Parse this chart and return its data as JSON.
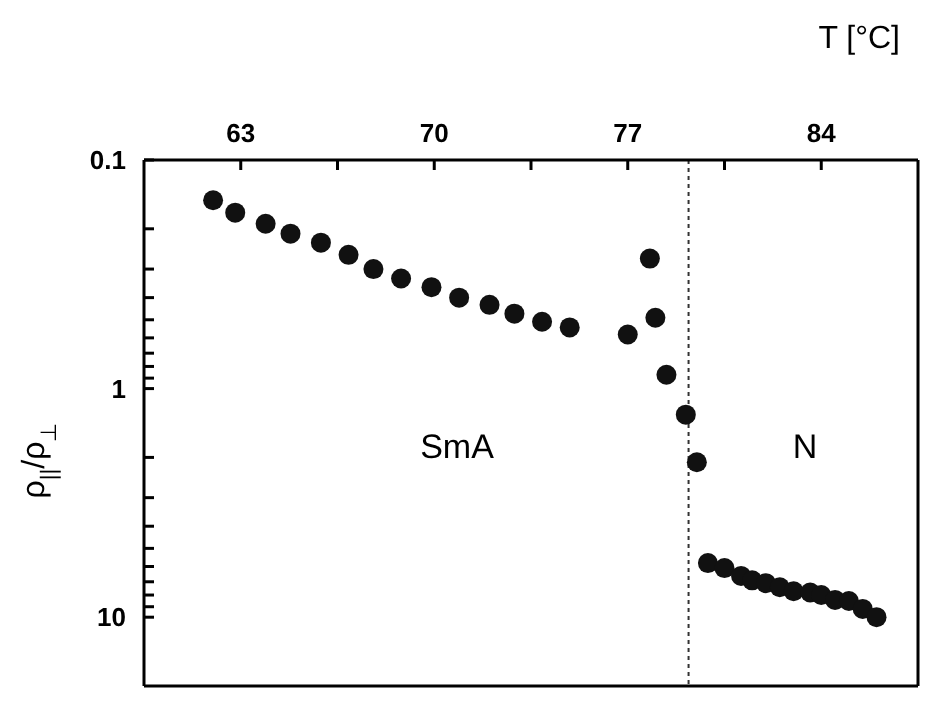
{
  "chart_data": {
    "type": "scatter",
    "xlabel": "T [°C]",
    "ylabel": "ρ$_{||}$/ρ$_{⊥}$",
    "xlim": [
      59.5,
      87.5
    ],
    "xticks": [
      63,
      {
        "value": 66.5,
        "label": null
      },
      70,
      {
        "value": 73.5,
        "label": null
      },
      77,
      {
        "value": 80.5,
        "label": null
      },
      84
    ],
    "ylim": [
      20,
      0.1
    ],
    "log": true,
    "yticks": [
      0.1,
      {
        "value": 0.2,
        "label": null
      },
      {
        "value": 0.3,
        "label": null
      },
      {
        "value": 0.4,
        "label": null
      },
      {
        "value": 0.5,
        "label": null
      },
      {
        "value": 0.6,
        "label": null
      },
      {
        "value": 0.7,
        "label": null
      },
      {
        "value": 0.8,
        "label": null
      },
      {
        "value": 0.9,
        "label": null
      },
      1,
      {
        "value": 2,
        "label": null
      },
      {
        "value": 3,
        "label": null
      },
      {
        "value": 4,
        "label": null
      },
      {
        "value": 5,
        "label": null
      },
      {
        "value": 6,
        "label": null
      },
      {
        "value": 7,
        "label": null
      },
      {
        "value": 8,
        "label": null
      },
      {
        "value": 9,
        "label": null
      },
      10
    ],
    "marker": "circle",
    "series": [
      {
        "color": "#111111",
        "x": [
          62.0,
          62.8,
          63.9,
          64.8,
          65.9,
          66.9,
          67.8,
          68.8,
          69.9,
          70.9,
          72.0,
          72.9,
          73.9,
          74.9,
          77.0,
          77.8,
          78.0,
          78.4,
          79.1,
          79.5,
          79.9,
          80.5,
          81.1,
          81.5,
          82.0,
          82.5,
          83.0,
          83.6,
          84.0,
          84.5,
          85.0,
          85.5,
          86.0
        ],
        "values": [
          0.15,
          0.17,
          0.19,
          0.21,
          0.23,
          0.26,
          0.3,
          0.33,
          0.36,
          0.4,
          0.43,
          0.47,
          0.51,
          0.54,
          0.58,
          0.27,
          0.49,
          0.87,
          1.3,
          2.1,
          5.8,
          6.1,
          6.6,
          6.9,
          7.1,
          7.4,
          7.7,
          7.8,
          8.0,
          8.4,
          8.5,
          9.2,
          10
        ]
      }
    ],
    "ref_lines": [
      {
        "axis": "x",
        "value": 79.2,
        "line_style": "dotted",
        "color": "#333333"
      }
    ],
    "annotations": [
      "SmA",
      "N"
    ]
  }
}
